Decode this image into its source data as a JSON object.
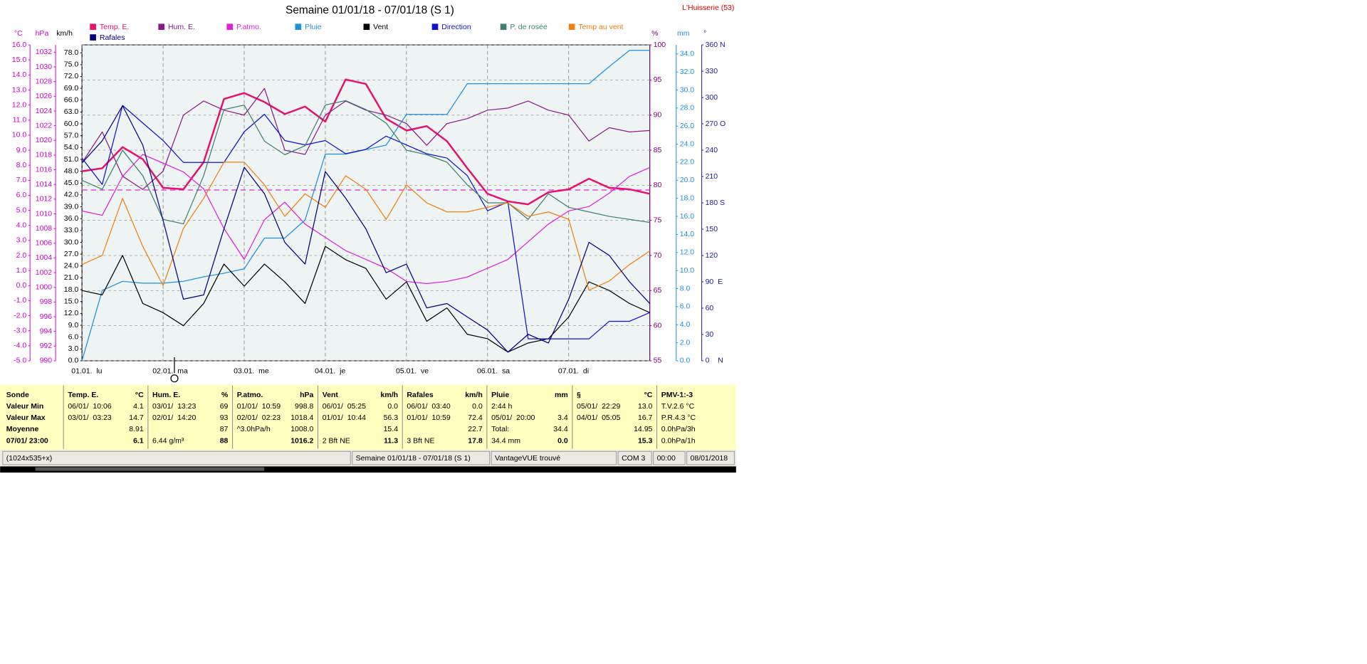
{
  "chart_data": {
    "type": "line",
    "title": "Semaine 01/01/18 - 07/01/18 (S 1)",
    "station": "L'Huisserie (53)",
    "categories": [
      "01.01.  lu",
      null,
      null,
      null,
      "02.01.  ma",
      null,
      null,
      null,
      "03.01.  me",
      null,
      null,
      null,
      "04.01.  je",
      null,
      null,
      null,
      "05.01.  ve",
      null,
      null,
      null,
      "06.01.  sa",
      null,
      null,
      null,
      "07.01.  di",
      null,
      null,
      null,
      null
    ],
    "axes": [
      {
        "unit": "°C",
        "side": "left",
        "color": "#d000d0",
        "ylim": [
          -5,
          16
        ],
        "yticks": [
          {
            "value": -5,
            "label": "-5.0"
          },
          {
            "value": -4,
            "label": "-4.0"
          },
          {
            "value": -3,
            "label": "-3.0"
          },
          {
            "value": -2,
            "label": "-2.0"
          },
          {
            "value": -1,
            "label": "-1.0"
          },
          {
            "value": 0,
            "label": "0.0"
          },
          {
            "value": 1,
            "label": "1.0"
          },
          {
            "value": 2,
            "label": "2.0"
          },
          {
            "value": 3,
            "label": "3.0"
          },
          {
            "value": 4,
            "label": "4.0"
          },
          {
            "value": 5,
            "label": "5.0"
          },
          {
            "value": 6,
            "label": "6.0"
          },
          {
            "value": 7,
            "label": "7.0"
          },
          {
            "value": 8,
            "label": "8.0"
          },
          {
            "value": 9,
            "label": "9.0"
          },
          {
            "value": 10,
            "label": "10.0"
          },
          {
            "value": 11,
            "label": "11.0"
          },
          {
            "value": 12,
            "label": "12.0"
          },
          {
            "value": 13,
            "label": "13.0"
          },
          {
            "value": 14,
            "label": "14.0"
          },
          {
            "value": 15,
            "label": "15.0"
          },
          {
            "value": 16,
            "label": "16.0"
          }
        ]
      },
      {
        "unit": "hPa",
        "side": "left",
        "color": "#d000d0",
        "ylim": [
          990,
          1033
        ],
        "yticks": [
          990,
          992,
          994,
          996,
          998,
          1000,
          1002,
          1004,
          1006,
          1008,
          1010,
          1012,
          1014,
          1016,
          1018,
          1020,
          1022,
          1024,
          1026,
          1028,
          1030,
          1032
        ]
      },
      {
        "unit": "km/h",
        "side": "left",
        "color": "#000000",
        "ylim": [
          0,
          80
        ],
        "yticks": [
          {
            "value": 0,
            "label": "0.0"
          },
          {
            "value": 3,
            "label": "3.0"
          },
          {
            "value": 6,
            "label": "6.0"
          },
          {
            "value": 9,
            "label": "9.0"
          },
          {
            "value": 12,
            "label": "12.0"
          },
          {
            "value": 15,
            "label": "15.0"
          },
          {
            "value": 18,
            "label": "18.0"
          },
          {
            "value": 21,
            "label": "21.0"
          },
          {
            "value": 24,
            "label": "24.0"
          },
          {
            "value": 27,
            "label": "27.0"
          },
          {
            "value": 30,
            "label": "30.0"
          },
          {
            "value": 33,
            "label": "33.0"
          },
          {
            "value": 36,
            "label": "36.0"
          },
          {
            "value": 39,
            "label": "39.0"
          },
          {
            "value": 42,
            "label": "42.0"
          },
          {
            "value": 45,
            "label": "45.0"
          },
          {
            "value": 48,
            "label": "48.0"
          },
          {
            "value": 51,
            "label": "51.0"
          },
          {
            "value": 54,
            "label": "54.0"
          },
          {
            "value": 57,
            "label": "57.0"
          },
          {
            "value": 60,
            "label": "60.0"
          },
          {
            "value": 63,
            "label": "63.0"
          },
          {
            "value": 66,
            "label": "66.0"
          },
          {
            "value": 69,
            "label": "69.0"
          },
          {
            "value": 72,
            "label": "72.0"
          },
          {
            "value": 75,
            "label": "75.0"
          },
          {
            "value": 78,
            "label": "78.0"
          }
        ]
      },
      {
        "unit": "%",
        "side": "right",
        "color": "#800080",
        "grid": true,
        "ylim": [
          55,
          100
        ],
        "yticks": [
          55,
          60,
          65,
          70,
          75,
          80,
          85,
          90,
          95,
          100
        ]
      },
      {
        "unit": "mm",
        "side": "right",
        "color": "#1e90e0",
        "ylim": [
          0,
          35
        ],
        "yticks": [
          {
            "value": 0,
            "label": "0.0"
          },
          {
            "value": 2,
            "label": "2.0"
          },
          {
            "value": 4,
            "label": "4.0"
          },
          {
            "value": 6,
            "label": "6.0"
          },
          {
            "value": 8,
            "label": "8.0"
          },
          {
            "value": 10,
            "label": "10.0"
          },
          {
            "value": 12,
            "label": "12.0"
          },
          {
            "value": 14,
            "label": "14.0"
          },
          {
            "value": 16,
            "label": "16.0"
          },
          {
            "value": 18,
            "label": "18.0"
          },
          {
            "value": 20,
            "label": "20.0"
          },
          {
            "value": 22,
            "label": "22.0"
          },
          {
            "value": 24,
            "label": "24.0"
          },
          {
            "value": 26,
            "label": "26.0"
          },
          {
            "value": 28,
            "label": "28.0"
          },
          {
            "value": 30,
            "label": "30.0"
          },
          {
            "value": 32,
            "label": "32.0"
          },
          {
            "value": 34,
            "label": "34.0"
          }
        ]
      },
      {
        "unit": "°",
        "side": "right",
        "color": "#1a1aa0",
        "ylim": [
          0,
          360
        ],
        "yticks": [
          {
            "value": 0,
            "label": "0    N"
          },
          30,
          60,
          {
            "value": 90,
            "label": "90  E"
          },
          120,
          150,
          {
            "value": 180,
            "label": "180 S"
          },
          210,
          240,
          {
            "value": 270,
            "label": "270 O"
          },
          300,
          330,
          {
            "value": 360,
            "label": "360 N"
          }
        ]
      }
    ],
    "reference": {
      "value": 1013.25,
      "axis": 1,
      "color": "#e020e0"
    },
    "series": [
      {
        "name": "Temp. E.",
        "color": "#e8106a",
        "axis": 0,
        "width": 2,
        "values": [
          7.6,
          7.8,
          9.2,
          8.4,
          6.5,
          6.4,
          8.2,
          12.4,
          12.8,
          12.2,
          11.4,
          11.9,
          10.9,
          13.7,
          13.4,
          11.1,
          10.3,
          10.6,
          9.6,
          7.8,
          6.1,
          5.6,
          5.4,
          6.2,
          6.4,
          7.1,
          6.5,
          6.4,
          6.1
        ]
      },
      {
        "name": "Hum. E.",
        "color": "#8b1a8b",
        "axis": 3,
        "width": 1,
        "values": [
          83.2,
          87.6,
          81.3,
          79.4,
          82,
          90,
          92,
          90.7,
          90,
          93.8,
          85,
          84.4,
          90,
          92,
          90.7,
          90,
          88.8,
          85.7,
          88.8,
          89.5,
          90.7,
          91,
          92,
          90.7,
          90,
          86.3,
          88.2,
          87.6,
          87.8
        ]
      },
      {
        "name": "P.atmo.",
        "color": "#e020e0",
        "axis": 1,
        "width": 1,
        "values": [
          1010.4,
          1009.8,
          1015.1,
          1018.1,
          1016.9,
          1015.7,
          1013.4,
          1008,
          1003.8,
          1009.2,
          1011.6,
          1008.6,
          1006.8,
          1005,
          1003.8,
          1002.6,
          1000.8,
          1000.5,
          1000.8,
          1001.4,
          1002.6,
          1003.8,
          1006.2,
          1008.6,
          1010.4,
          1011,
          1012.8,
          1015.1,
          1016.3
        ]
      },
      {
        "name": "Pluie",
        "color": "#1e90e0",
        "axis": 4,
        "width": 1,
        "values": [
          0,
          7.8,
          8.8,
          8.6,
          8.6,
          8.8,
          9.3,
          9.7,
          10.2,
          13.6,
          13.6,
          15.6,
          22.9,
          22.9,
          23.4,
          23.9,
          27.3,
          27.3,
          27.3,
          30.7,
          30.7,
          30.7,
          30.7,
          30.7,
          30.7,
          30.7,
          32.6,
          34.4,
          34.4
        ]
      },
      {
        "name": "Vent",
        "color": "#000000",
        "axis": 2,
        "width": 1,
        "values": [
          17.8,
          16.7,
          26.7,
          14.5,
          12.2,
          8.9,
          14.5,
          24.5,
          18.9,
          24.5,
          20,
          14.5,
          29,
          25.6,
          23.4,
          15.6,
          20,
          10,
          13.4,
          6.7,
          5.6,
          2.2,
          4.5,
          5.6,
          11.1,
          20,
          17.8,
          14.5,
          12.2
        ]
      },
      {
        "name": "Direction",
        "color": "#1010d0",
        "axis": 5,
        "width": 1,
        "values": [
          231,
          201,
          291,
          271,
          251,
          226,
          226,
          226,
          261,
          281,
          251,
          246,
          251,
          236,
          241,
          256,
          246,
          236,
          231,
          211,
          171,
          181,
          25,
          25,
          25,
          25,
          45,
          45,
          55
        ]
      },
      {
        "name": "P. de rosée",
        "color": "#3f7f6f",
        "axis": 0,
        "width": 1,
        "values": [
          7,
          6.4,
          9,
          7.3,
          4.4,
          4.1,
          7.3,
          11.7,
          12,
          9.6,
          8.7,
          9.3,
          12,
          12.3,
          11.7,
          10.8,
          9,
          8.7,
          8.2,
          6.7,
          5.5,
          5.5,
          4.4,
          6.1,
          5.2,
          4.9,
          4.6,
          4.4,
          4.2
        ]
      },
      {
        "name": "Temp au vent",
        "color": "#f08010",
        "axis": 0,
        "width": 1,
        "values": [
          1.4,
          2,
          5.8,
          2.6,
          0,
          3.8,
          5.8,
          8.2,
          8.2,
          6.7,
          4.6,
          6.1,
          5.2,
          7.3,
          6.4,
          4.4,
          6.7,
          5.5,
          4.9,
          4.9,
          5.2,
          5.5,
          4.6,
          4.9,
          4.4,
          -0.3,
          0.3,
          1.4,
          2.3
        ]
      },
      {
        "name": "Rafales",
        "color": "#000080",
        "axis": 2,
        "width": 1,
        "values": [
          50.1,
          55.7,
          64.6,
          54.6,
          35.6,
          15.6,
          16.7,
          33.4,
          49,
          42.3,
          30,
          24.5,
          47.9,
          41.2,
          33.4,
          22.3,
          24.5,
          13.4,
          14.5,
          11.1,
          7.8,
          2.2,
          6.7,
          4.5,
          15.6,
          30,
          26.7,
          20,
          14.5
        ]
      }
    ]
  },
  "table": {
    "columns": [
      {
        "title": "Sonde",
        "rows": [
          [
            "Valeur Min",
            null
          ],
          [
            "Valeur Max",
            null
          ],
          [
            "Moyenne",
            null
          ],
          [
            "07/01/ 23:00",
            null
          ]
        ]
      },
      {
        "title": "Temp. E.",
        "unit": "°C",
        "rows": [
          [
            "06/01/  10:06",
            "4.1"
          ],
          [
            "03/01/  03:23",
            "14.7"
          ],
          [
            null,
            "8.91"
          ],
          [
            null,
            "6.1"
          ]
        ]
      },
      {
        "title": "Hum. E.",
        "unit": "%",
        "rows": [
          [
            "03/01/  13:23",
            "69"
          ],
          [
            "02/01/  14:20",
            "93"
          ],
          [
            null,
            "87"
          ],
          [
            "6.44 g/m³",
            "88"
          ]
        ]
      },
      {
        "title": "P.atmo.",
        "unit": "hPa",
        "rows": [
          [
            "01/01/  10:59",
            "998.8"
          ],
          [
            "02/01/  02:23",
            "1018.4"
          ],
          [
            "^3.0hPa/h",
            "1008.0"
          ],
          [
            null,
            "1016.2"
          ]
        ]
      },
      {
        "title": "Vent",
        "unit": "km/h",
        "rows": [
          [
            "06/01/  05:25",
            "0.0"
          ],
          [
            "01/01/  10:44",
            "56.3"
          ],
          [
            null,
            "15.4"
          ],
          [
            "2 Bft NE",
            "11.3"
          ]
        ]
      },
      {
        "title": "Rafales",
        "unit": "km/h",
        "rows": [
          [
            "06/01/  03:40",
            "0.0"
          ],
          [
            "01/01/  10:59",
            "72.4"
          ],
          [
            null,
            "22.7"
          ],
          [
            "3 Bft NE",
            "17.8"
          ]
        ]
      },
      {
        "title": "Pluie",
        "unit": "mm",
        "rows": [
          [
            "2:44 h",
            null
          ],
          [
            "05/01/  20:00",
            "3.4"
          ],
          [
            "Total:",
            "34.4"
          ],
          [
            "34.4 mm",
            "0.0"
          ]
        ]
      },
      {
        "title": "§",
        "unit": "°C",
        "rows": [
          [
            "05/01/  22:29",
            "13.0"
          ],
          [
            "04/01/  05:05",
            "16.7"
          ],
          [
            null,
            "14.95"
          ],
          [
            null,
            "15.3"
          ]
        ]
      },
      {
        "title": "PMV-1:-3",
        "rows": [
          [
            "T.V.2.6 °C",
            null
          ],
          [
            "P.R.4.3 °C",
            null
          ],
          [
            "0.0hPa/3h",
            null
          ],
          [
            "0.0hPa/1h",
            null
          ]
        ]
      }
    ]
  },
  "status_bar": [
    "(1024x535+x)",
    "Semaine 01/01/18 - 07/01/18 (S 1)",
    "VantageVUE trouvé",
    "COM 3",
    "00:00",
    "08/01/2018"
  ]
}
